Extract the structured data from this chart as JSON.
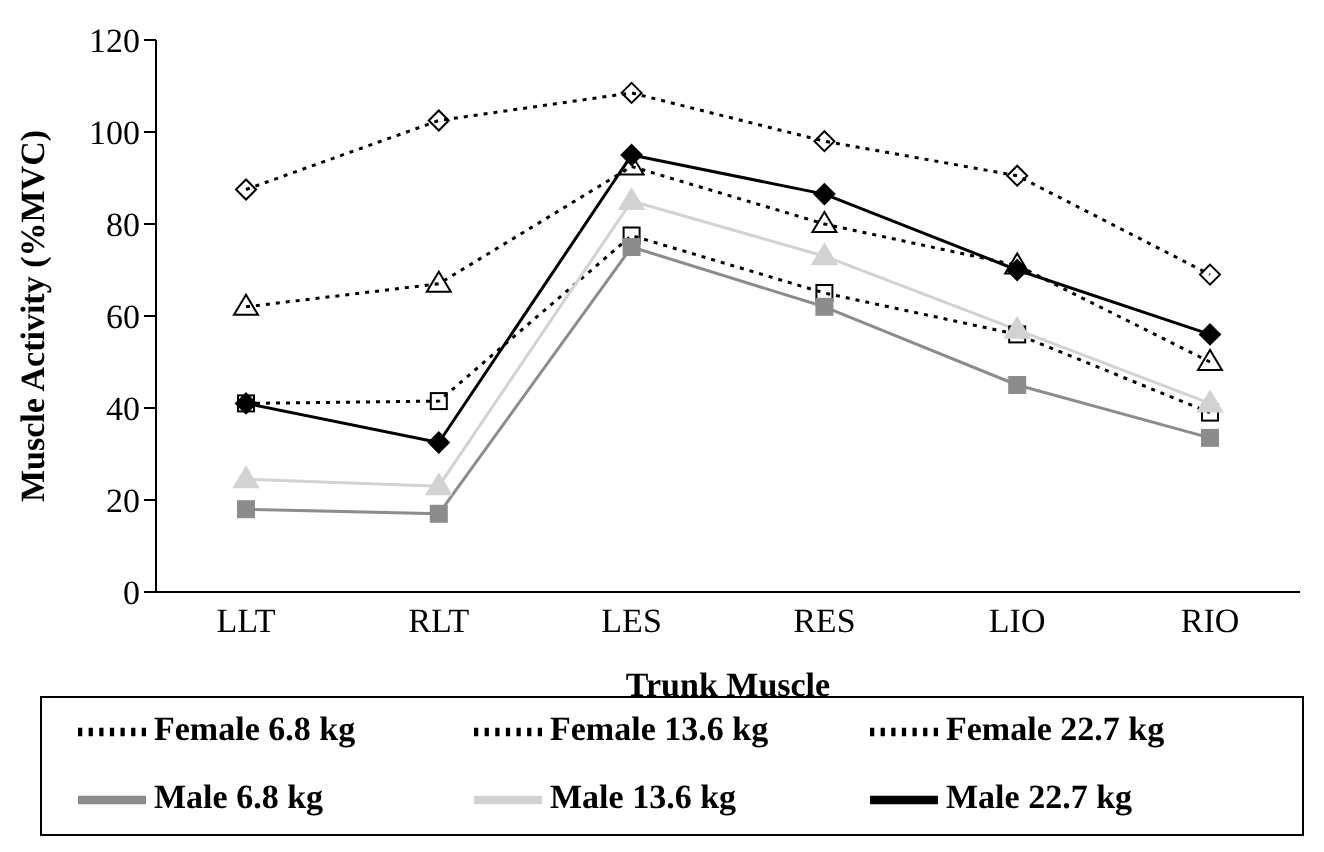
{
  "chart_data": {
    "type": "line",
    "xlabel": "Trunk Muscle",
    "ylabel": "Muscle Activity (%MVC)",
    "categories": [
      "LLT",
      "RLT",
      "LES",
      "RES",
      "LIO",
      "RIO"
    ],
    "ylim": [
      0,
      120
    ],
    "yticks": [
      0,
      20,
      40,
      60,
      80,
      100,
      120
    ],
    "grid": false,
    "legend": "bottom",
    "series": [
      {
        "name": "Female 6.8 kg",
        "color": "#000000",
        "marker": "square",
        "line_style": "dotted",
        "values": [
          41,
          41.5,
          77.5,
          65,
          56,
          39
        ]
      },
      {
        "name": "Female 13.6 kg",
        "color": "#000000",
        "marker": "triangle",
        "line_style": "dotted",
        "values": [
          62,
          67,
          92.5,
          80,
          71,
          50
        ]
      },
      {
        "name": "Female 22.7 kg",
        "color": "#000000",
        "marker": "diamond",
        "line_style": "dotted",
        "values": [
          87.5,
          102.5,
          108.5,
          98,
          90.5,
          69
        ]
      },
      {
        "name": "Male 6.8 kg",
        "color": "#8c8c8c",
        "marker": "square",
        "line_style": "solid",
        "values": [
          18,
          17,
          75,
          62,
          45,
          33.5
        ]
      },
      {
        "name": "Male 13.6 kg",
        "color": "#d2d2d2",
        "marker": "triangle",
        "line_style": "solid",
        "values": [
          24.5,
          23,
          85,
          73,
          57,
          41
        ]
      },
      {
        "name": "Male 22.7 kg",
        "color": "#000000",
        "marker": "diamond",
        "line_style": "solid",
        "values": [
          41,
          32.5,
          95,
          86.5,
          70,
          56
        ]
      }
    ]
  }
}
